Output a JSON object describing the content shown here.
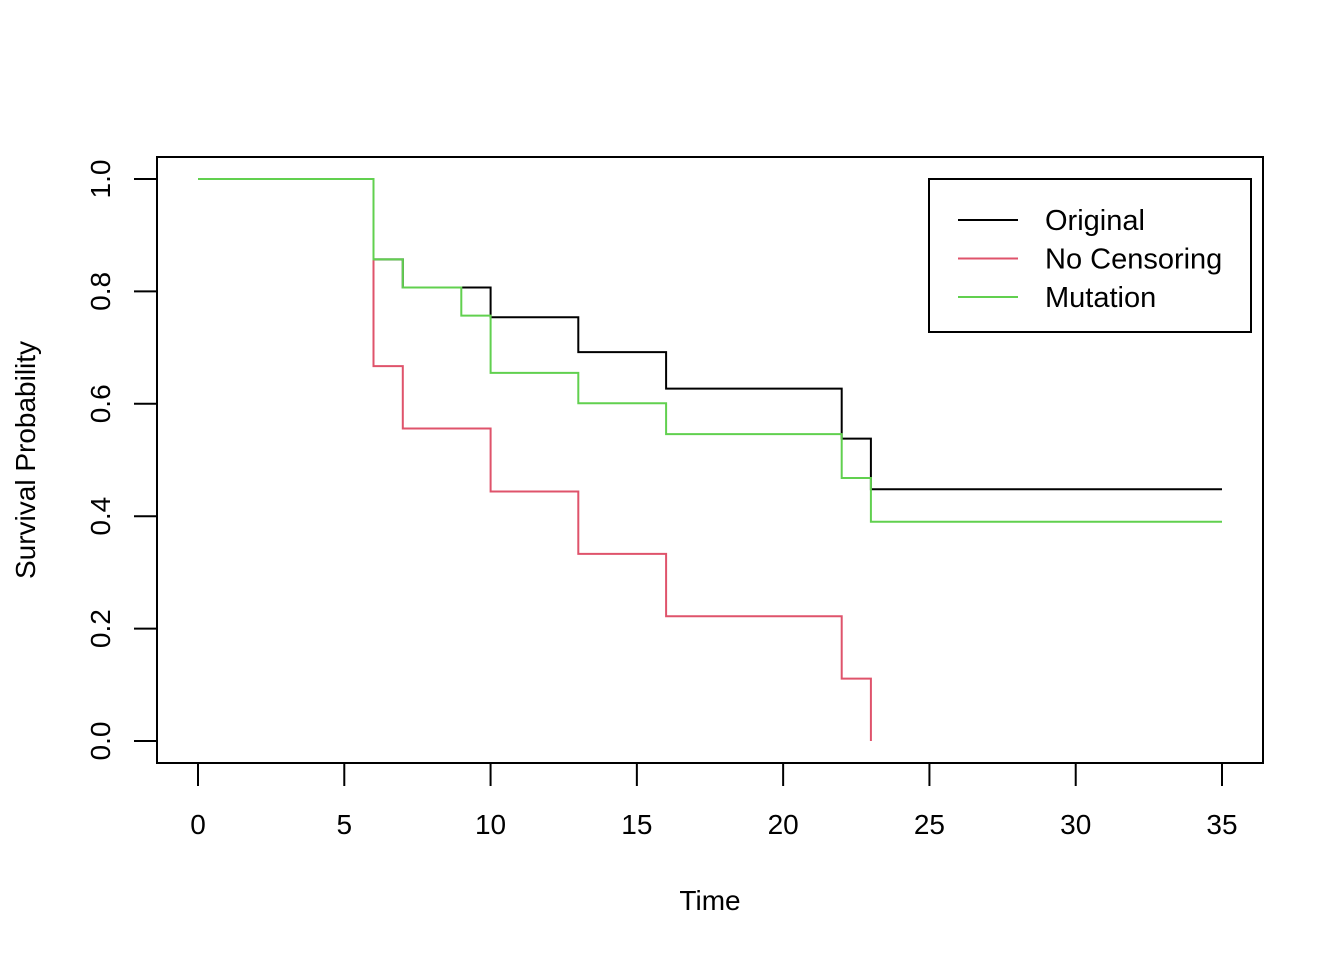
{
  "chart_data": {
    "type": "line",
    "step": true,
    "xlabel": "Time",
    "ylabel": "Survival Probability",
    "xlim": [
      0,
      35
    ],
    "ylim": [
      0,
      1
    ],
    "x_ticks": [
      "0",
      "5",
      "10",
      "15",
      "20",
      "25",
      "30",
      "35"
    ],
    "y_ticks": [
      "0.0",
      "0.2",
      "0.4",
      "0.6",
      "0.8",
      "1.0"
    ],
    "grid": false,
    "legend": {
      "position": "top-right"
    },
    "series": [
      {
        "name": "Original",
        "color": "#000000",
        "points": [
          [
            0,
            1.0
          ],
          [
            6,
            1.0
          ],
          [
            6,
            0.857
          ],
          [
            7,
            0.857
          ],
          [
            7,
            0.807
          ],
          [
            9,
            0.807
          ],
          [
            9,
            0.807
          ],
          [
            10,
            0.807
          ],
          [
            10,
            0.754
          ],
          [
            13,
            0.754
          ],
          [
            13,
            0.692
          ],
          [
            16,
            0.692
          ],
          [
            16,
            0.627
          ],
          [
            22,
            0.627
          ],
          [
            22,
            0.538
          ],
          [
            23,
            0.538
          ],
          [
            23,
            0.448
          ],
          [
            35,
            0.448
          ]
        ]
      },
      {
        "name": "No Censoring",
        "color": "#DF536B",
        "points": [
          [
            0,
            1.0
          ],
          [
            6,
            1.0
          ],
          [
            6,
            0.667
          ],
          [
            7,
            0.667
          ],
          [
            7,
            0.556
          ],
          [
            10,
            0.556
          ],
          [
            10,
            0.444
          ],
          [
            13,
            0.444
          ],
          [
            13,
            0.333
          ],
          [
            16,
            0.333
          ],
          [
            16,
            0.222
          ],
          [
            22,
            0.222
          ],
          [
            22,
            0.111
          ],
          [
            23,
            0.111
          ],
          [
            23,
            0.0
          ]
        ]
      },
      {
        "name": "Mutation",
        "color": "#61D04F",
        "points": [
          [
            0,
            1.0
          ],
          [
            6,
            1.0
          ],
          [
            6,
            0.857
          ],
          [
            7,
            0.857
          ],
          [
            7,
            0.807
          ],
          [
            9,
            0.807
          ],
          [
            9,
            0.757
          ],
          [
            10,
            0.757
          ],
          [
            10,
            0.655
          ],
          [
            13,
            0.655
          ],
          [
            13,
            0.601
          ],
          [
            16,
            0.601
          ],
          [
            16,
            0.546
          ],
          [
            22,
            0.546
          ],
          [
            22,
            0.468
          ],
          [
            23,
            0.468
          ],
          [
            23,
            0.39
          ],
          [
            35,
            0.39
          ]
        ]
      }
    ]
  }
}
